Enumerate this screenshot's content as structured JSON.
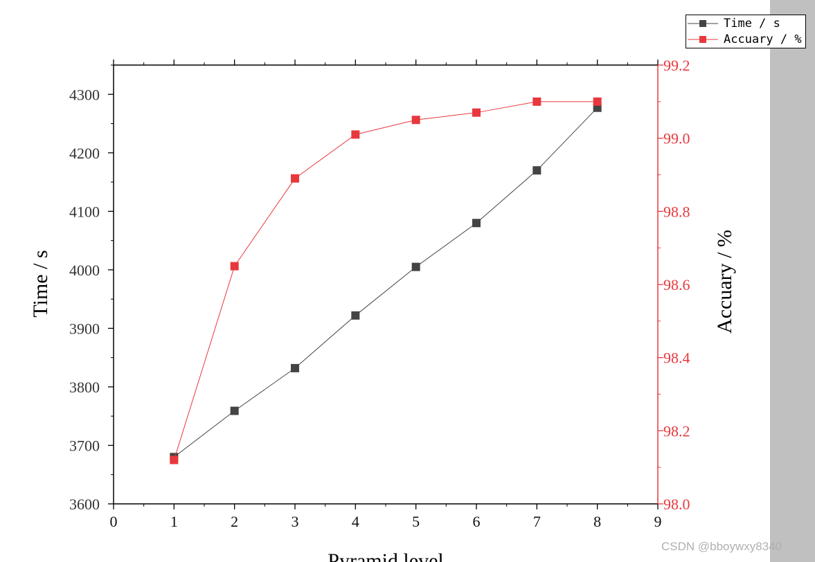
{
  "chart_data": {
    "type": "line",
    "xlabel": "Pyramid level",
    "ylabel_left": "Time / s",
    "ylabel_right": "Accuary / %",
    "x": [
      1,
      2,
      3,
      4,
      5,
      6,
      7,
      8
    ],
    "xlim": [
      0,
      9
    ],
    "xticks": [
      "0",
      "1",
      "2",
      "3",
      "4",
      "5",
      "6",
      "7",
      "8",
      "9"
    ],
    "ylim_left": [
      3600,
      4350
    ],
    "yticks_left": [
      "3600",
      "3700",
      "3800",
      "3900",
      "4000",
      "4100",
      "4200",
      "4300"
    ],
    "ylim_right": [
      98.0,
      99.2
    ],
    "yticks_right": [
      "98.0",
      "98.2",
      "98.4",
      "98.6",
      "98.8",
      "99.0",
      "99.2"
    ],
    "series": [
      {
        "name": "Time / s",
        "axis": "left",
        "color": "#444444",
        "values": [
          3680,
          3759,
          3832,
          3922,
          4005,
          4080,
          4170,
          4277
        ]
      },
      {
        "name": "Accuary / %",
        "axis": "right",
        "color": "#e8383d",
        "values": [
          98.12,
          98.65,
          98.89,
          99.01,
          99.05,
          99.07,
          99.1,
          99.1
        ]
      }
    ],
    "legend": "top-right",
    "grid": false
  },
  "watermark": "CSDN @bboywxy8340"
}
